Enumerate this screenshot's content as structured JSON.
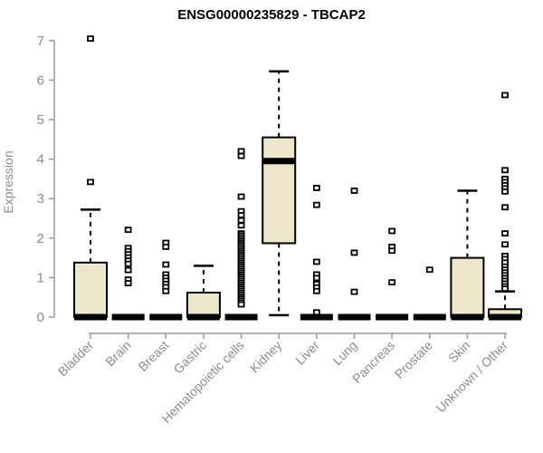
{
  "chart_data": {
    "type": "boxplot",
    "title": "ENSG00000235829 - TBCAP2",
    "ylabel": "Expression",
    "xlabel": "",
    "ylim": [
      0,
      7
    ],
    "yticks": [
      0,
      1,
      2,
      3,
      4,
      5,
      6,
      7
    ],
    "grid": false,
    "legend": "none",
    "categories": [
      "Bladder",
      "Brain",
      "Breast",
      "Gastric",
      "Hematopoietic cells",
      "Kidney",
      "Liver",
      "Lung",
      "Pancreas",
      "Prostate",
      "Skin",
      "Unknown / Other"
    ],
    "boxes": [
      {
        "category": "Bladder",
        "q1": 0,
        "median": 0,
        "q3": 1.38,
        "whisker_low": 0,
        "whisker_high": 2.72,
        "outliers": [
          7.05,
          3.42
        ]
      },
      {
        "category": "Brain",
        "q1": 0,
        "median": 0,
        "q3": 0,
        "whisker_low": 0,
        "whisker_high": 0,
        "outliers": [
          2.21,
          1.75,
          1.67,
          1.59,
          1.51,
          1.43,
          1.35,
          1.19,
          0.95,
          0.86
        ]
      },
      {
        "category": "Breast",
        "q1": 0,
        "median": 0,
        "q3": 0,
        "whisker_low": 0,
        "whisker_high": 0,
        "outliers": [
          1.88,
          1.78,
          1.33,
          1.08,
          1.0,
          0.92,
          0.84,
          0.76,
          0.66
        ]
      },
      {
        "category": "Gastric",
        "q1": 0,
        "median": 0,
        "q3": 0.62,
        "whisker_low": 0,
        "whisker_high": 1.3,
        "outliers": []
      },
      {
        "category": "Hematopoietic cells",
        "q1": 0,
        "median": 0,
        "q3": 0,
        "whisker_low": 0,
        "whisker_high": 0,
        "outliers": [
          4.2,
          4.08,
          3.05,
          2.68,
          2.58,
          2.45,
          2.32,
          2.12,
          2.07,
          2.02,
          1.97,
          1.92,
          1.87,
          1.82,
          1.77,
          1.72,
          1.67,
          1.62,
          1.57,
          1.52,
          1.47,
          1.42,
          1.37,
          1.32,
          1.27,
          1.22,
          1.17,
          1.12,
          1.07,
          1.02,
          0.97,
          0.92,
          0.87,
          0.82,
          0.77,
          0.72,
          0.67,
          0.62,
          0.57,
          0.52,
          0.47,
          0.42,
          0.37,
          0.32
        ]
      },
      {
        "category": "Kidney",
        "q1": 1.87,
        "median": 3.95,
        "q3": 4.55,
        "whisker_low": 0.05,
        "whisker_high": 6.22,
        "outliers": []
      },
      {
        "category": "Liver",
        "q1": 0,
        "median": 0,
        "q3": 0,
        "whisker_low": 0,
        "whisker_high": 0,
        "outliers": [
          3.27,
          2.84,
          1.4,
          1.08,
          0.99,
          0.84,
          0.75,
          0.66,
          0.12
        ]
      },
      {
        "category": "Lung",
        "q1": 0,
        "median": 0,
        "q3": 0,
        "whisker_low": 0,
        "whisker_high": 0,
        "outliers": [
          3.2,
          1.63,
          0.64
        ]
      },
      {
        "category": "Pancreas",
        "q1": 0,
        "median": 0,
        "q3": 0,
        "whisker_low": 0,
        "whisker_high": 0,
        "outliers": [
          2.18,
          1.78,
          1.68,
          0.88
        ]
      },
      {
        "category": "Prostate",
        "q1": 0,
        "median": 0,
        "q3": 0,
        "whisker_low": 0,
        "whisker_high": 0,
        "outliers": [
          1.2
        ]
      },
      {
        "category": "Skin",
        "q1": 0,
        "median": 0,
        "q3": 1.5,
        "whisker_low": 0,
        "whisker_high": 3.2,
        "outliers": []
      },
      {
        "category": "Unknown / Other",
        "q1": 0,
        "median": 0,
        "q3": 0.2,
        "whisker_low": 0,
        "whisker_high": 0.65,
        "outliers": [
          5.62,
          3.72,
          3.5,
          3.42,
          3.34,
          3.26,
          3.18,
          2.78,
          2.12,
          1.84,
          1.55,
          1.47,
          1.38,
          1.28,
          1.2,
          1.13,
          1.06,
          0.99,
          0.92,
          0.85,
          0.78,
          0.72
        ]
      }
    ]
  },
  "colors": {
    "box_fill": "#ede8cb",
    "box_border": "#000000",
    "axis_line": "#9a9a9a",
    "axis_text": "#8c8c8c",
    "title_text": "#000000",
    "background": "#ffffff"
  }
}
